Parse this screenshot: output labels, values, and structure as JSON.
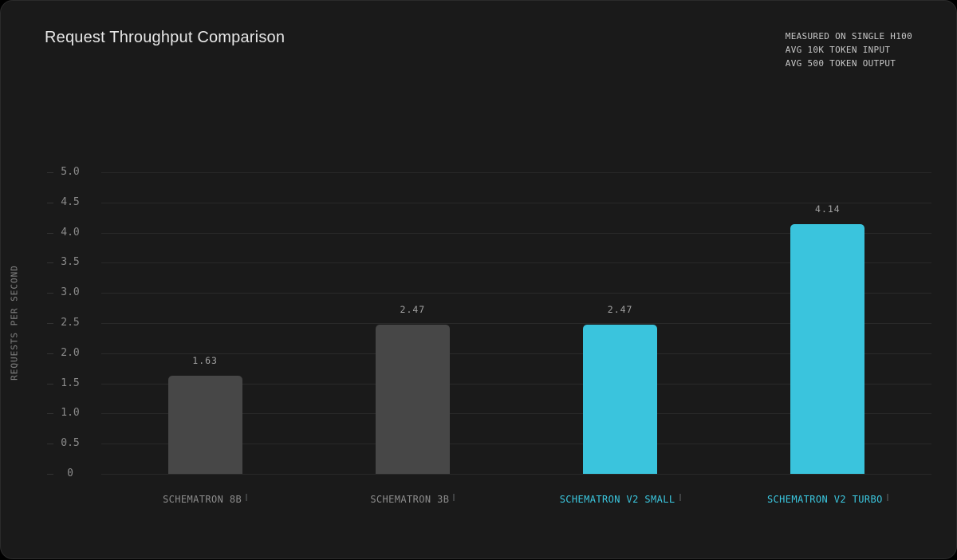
{
  "chart_data": {
    "type": "bar",
    "title": "Request Throughput Comparison",
    "notes": [
      "MEASURED ON SINGLE H100",
      "AVG 10K TOKEN INPUT",
      "AVG 500 TOKEN OUTPUT"
    ],
    "ylabel": "REQUESTS PER SECOND",
    "xlabel": "",
    "ylim": [
      0,
      5
    ],
    "ytick_step": 0.5,
    "ytick_labels": [
      "5.0",
      "4.5",
      "4.0",
      "3.5",
      "3.0",
      "2.5",
      "2.0",
      "1.5",
      "1.0",
      "0.5",
      "0"
    ],
    "grid": true,
    "legend": "none",
    "categories": [
      "SCHEMATRON 8B",
      "SCHEMATRON 3B",
      "SCHEMATRON V2 SMALL",
      "SCHEMATRON V2 TURBO"
    ],
    "values": [
      1.63,
      2.47,
      2.47,
      4.14
    ],
    "bars": [
      {
        "category": "SCHEMATRON 8B",
        "value": 1.63,
        "value_label": "1.63",
        "bar_color": "#474747",
        "category_color": "#8c8c8c"
      },
      {
        "category": "SCHEMATRON 3B",
        "value": 2.47,
        "value_label": "2.47",
        "bar_color": "#474747",
        "category_color": "#8c8c8c"
      },
      {
        "category": "SCHEMATRON V2 SMALL",
        "value": 2.47,
        "value_label": "2.47",
        "bar_color": "#3ac4dd",
        "category_color": "#3bc8e0"
      },
      {
        "category": "SCHEMATRON V2 TURBO",
        "value": 4.14,
        "value_label": "4.14",
        "bar_color": "#3ac4dd",
        "category_color": "#3bc8e0"
      }
    ],
    "colors": {
      "background": "#1a1a1a",
      "page_background": "#000000",
      "gridline": "#292929",
      "bar_gray": "#474747",
      "accent_cyan": "#3ac4dd",
      "title_text": "#e7e7e7",
      "notes_text": "#c7c7c7",
      "tick_text": "#8c8c8c",
      "value_text": "#a2a2a2"
    }
  }
}
